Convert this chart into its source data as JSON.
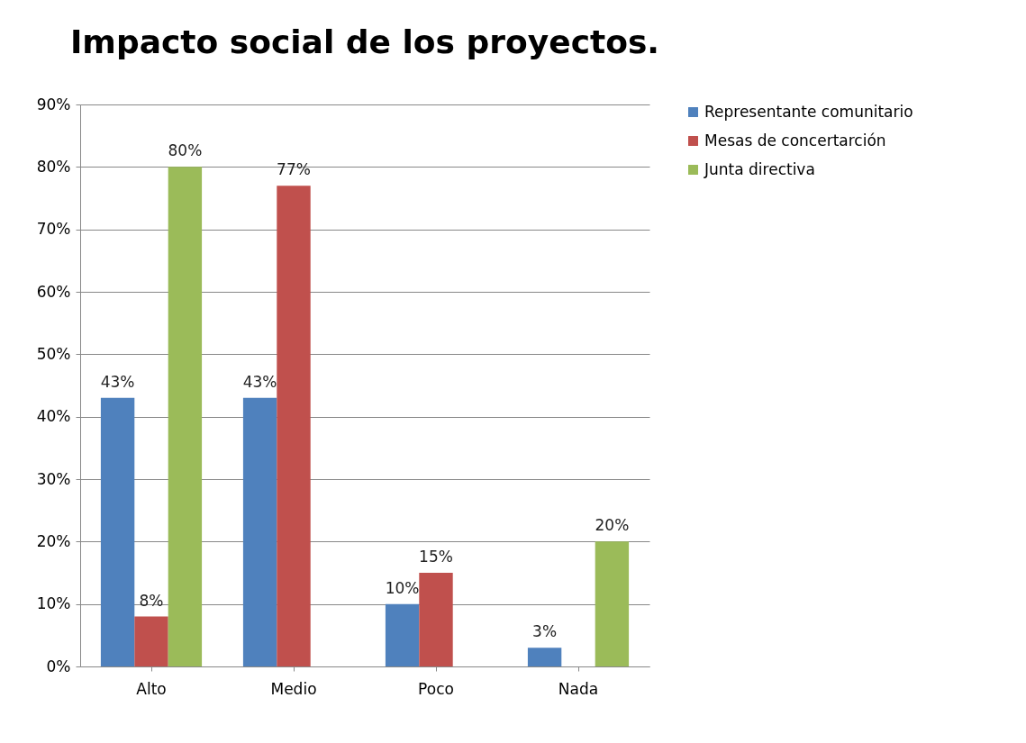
{
  "chart_data": {
    "type": "bar",
    "title": "Impacto social de los proyectos.",
    "categories": [
      "Alto",
      "Medio",
      "Poco",
      "Nada"
    ],
    "series": [
      {
        "name": "Representante comunitario",
        "color": "#4f81bd",
        "values": [
          43,
          43,
          10,
          3
        ],
        "value_labels": [
          "43%",
          "43%",
          "10%",
          "3%"
        ]
      },
      {
        "name": "Mesas de concertarción",
        "color": "#c0504d",
        "values": [
          8,
          77,
          15,
          null
        ],
        "value_labels": [
          "8%",
          "77%",
          "15%",
          null
        ]
      },
      {
        "name": "Junta directiva",
        "color": "#9bbb59",
        "values": [
          80,
          null,
          null,
          20
        ],
        "value_labels": [
          "80%",
          null,
          null,
          "20%"
        ]
      }
    ],
    "ylim": [
      0,
      90
    ],
    "yticks": [
      {
        "value": 0,
        "label": "0%"
      },
      {
        "value": 10,
        "label": "10%"
      },
      {
        "value": 20,
        "label": "20%"
      },
      {
        "value": 30,
        "label": "30%"
      },
      {
        "value": 40,
        "label": "40%"
      },
      {
        "value": 50,
        "label": "50%"
      },
      {
        "value": 60,
        "label": "60%"
      },
      {
        "value": 70,
        "label": "70%"
      },
      {
        "value": 80,
        "label": "80%"
      },
      {
        "value": 90,
        "label": "90%"
      }
    ],
    "grid": "y",
    "legend": "right"
  }
}
